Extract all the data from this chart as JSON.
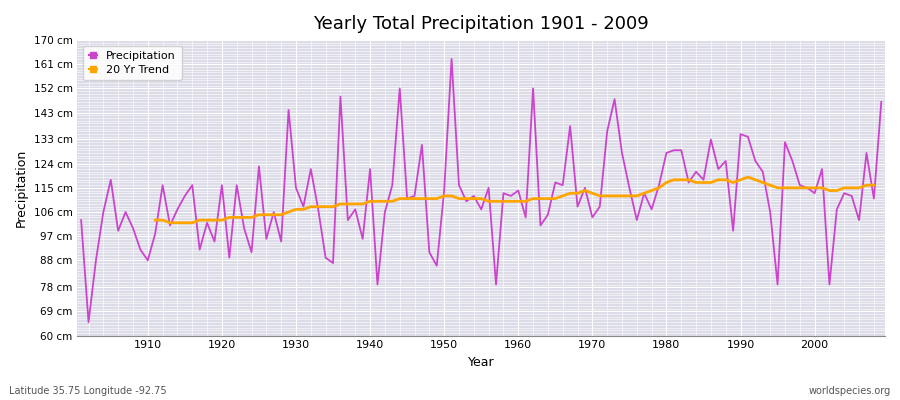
{
  "title": "Yearly Total Precipitation 1901 - 2009",
  "xlabel": "Year",
  "ylabel": "Precipitation",
  "subtitle_left": "Latitude 35.75 Longitude -92.75",
  "subtitle_right": "worldspecies.org",
  "precip_color": "#CC44CC",
  "trend_color": "#FFA500",
  "fig_bg_color": "#FFFFFF",
  "plot_bg_color": "#DCDCE8",
  "ylim": [
    60,
    170
  ],
  "yticks": [
    60,
    69,
    78,
    88,
    97,
    106,
    115,
    124,
    133,
    143,
    152,
    161,
    170
  ],
  "xticks": [
    1910,
    1920,
    1930,
    1940,
    1950,
    1960,
    1970,
    1980,
    1990,
    2000
  ],
  "years": [
    1901,
    1902,
    1903,
    1904,
    1905,
    1906,
    1907,
    1908,
    1909,
    1910,
    1911,
    1912,
    1913,
    1914,
    1915,
    1916,
    1917,
    1918,
    1919,
    1920,
    1921,
    1922,
    1923,
    1924,
    1925,
    1926,
    1927,
    1928,
    1929,
    1930,
    1931,
    1932,
    1933,
    1934,
    1935,
    1936,
    1937,
    1938,
    1939,
    1940,
    1941,
    1942,
    1943,
    1944,
    1945,
    1946,
    1947,
    1948,
    1949,
    1950,
    1951,
    1952,
    1953,
    1954,
    1955,
    1956,
    1957,
    1958,
    1959,
    1960,
    1961,
    1962,
    1963,
    1964,
    1965,
    1966,
    1967,
    1968,
    1969,
    1970,
    1971,
    1972,
    1973,
    1974,
    1975,
    1976,
    1977,
    1978,
    1979,
    1980,
    1981,
    1982,
    1983,
    1984,
    1985,
    1986,
    1987,
    1988,
    1989,
    1990,
    1991,
    1992,
    1993,
    1994,
    1995,
    1996,
    1997,
    1998,
    1999,
    2000,
    2001,
    2002,
    2003,
    2004,
    2005,
    2006,
    2007,
    2008,
    2009
  ],
  "precip": [
    103,
    65,
    88,
    106,
    118,
    99,
    106,
    100,
    92,
    88,
    98,
    116,
    101,
    107,
    112,
    116,
    92,
    102,
    95,
    116,
    89,
    116,
    100,
    91,
    123,
    96,
    106,
    95,
    144,
    115,
    108,
    122,
    107,
    89,
    87,
    149,
    103,
    107,
    96,
    122,
    79,
    106,
    116,
    152,
    111,
    112,
    131,
    91,
    86,
    114,
    163,
    116,
    110,
    112,
    107,
    115,
    79,
    113,
    112,
    114,
    104,
    152,
    101,
    105,
    117,
    116,
    138,
    108,
    115,
    104,
    108,
    136,
    148,
    128,
    115,
    103,
    113,
    107,
    116,
    128,
    129,
    129,
    117,
    121,
    118,
    133,
    122,
    125,
    99,
    135,
    134,
    125,
    121,
    106,
    79,
    132,
    125,
    116,
    115,
    113,
    122,
    79,
    107,
    113,
    112,
    103,
    128,
    111,
    147
  ],
  "trend": [
    null,
    null,
    null,
    null,
    null,
    null,
    null,
    null,
    null,
    null,
    103,
    103,
    102,
    102,
    102,
    102,
    103,
    103,
    103,
    103,
    104,
    104,
    104,
    104,
    105,
    105,
    105,
    105,
    106,
    107,
    107,
    108,
    108,
    108,
    108,
    109,
    109,
    109,
    109,
    110,
    110,
    110,
    110,
    111,
    111,
    111,
    111,
    111,
    111,
    112,
    112,
    111,
    111,
    111,
    111,
    110,
    110,
    110,
    110,
    110,
    110,
    111,
    111,
    111,
    111,
    112,
    113,
    113,
    114,
    113,
    112,
    112,
    112,
    112,
    112,
    112,
    113,
    114,
    115,
    117,
    118,
    118,
    118,
    117,
    117,
    117,
    118,
    118,
    117,
    118,
    119,
    118,
    117,
    116,
    115,
    115,
    115,
    115,
    115,
    115,
    115,
    114,
    114,
    115,
    115,
    115,
    116,
    116,
    null
  ]
}
